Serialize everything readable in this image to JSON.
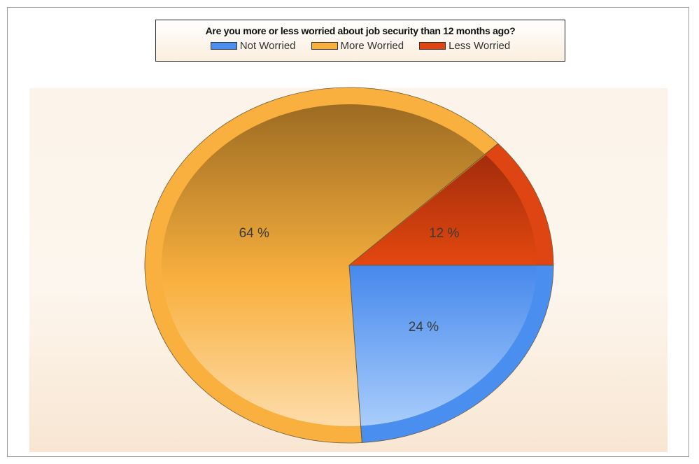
{
  "chart_data": {
    "type": "pie",
    "title": "Are you more or less worried about job security than 12 months ago?",
    "legend_position": "top",
    "slices": [
      {
        "name": "Not Worried",
        "value": 24,
        "label": "24 %",
        "color": "#4a8ff0"
      },
      {
        "name": "More Worried",
        "value": 64,
        "label": "64 %",
        "color": "#f9b03e"
      },
      {
        "name": "Less Worried",
        "value": 12,
        "label": "12 %",
        "color": "#de4512"
      }
    ]
  }
}
